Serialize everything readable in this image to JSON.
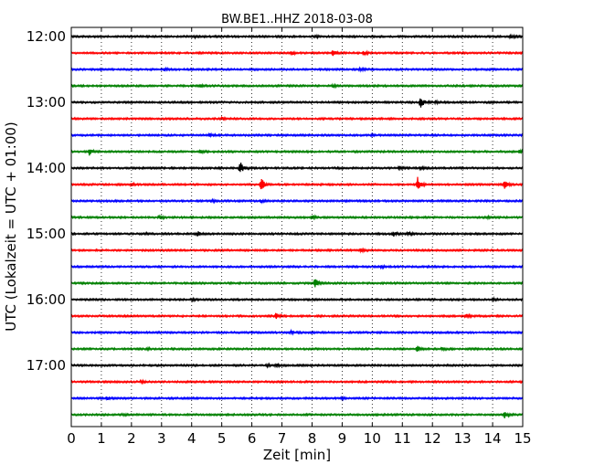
{
  "chart_data": {
    "type": "line",
    "title": "BW.BE1..HHZ 2018-03-08",
    "xlabel": "Zeit  [min]",
    "ylabel": "UTC (Lokalzeit = UTC + 01:00)",
    "xlim": [
      0,
      15
    ],
    "x_ticks": [
      "0",
      "1",
      "2",
      "3",
      "4",
      "5",
      "6",
      "7",
      "8",
      "9",
      "10",
      "11",
      "12",
      "13",
      "14",
      "15"
    ],
    "y_ticks": [
      "12:00",
      "13:00",
      "14:00",
      "15:00",
      "16:00",
      "17:00"
    ],
    "grid": true,
    "minutes_per_trace": 15,
    "colors": [
      "#000000",
      "#ff0000",
      "#0000ff",
      "#008000"
    ],
    "series": [
      {
        "start": "12:00",
        "events": [
          [
            4.1,
            1.2
          ],
          [
            8.1,
            1.4
          ],
          [
            14.6,
            1.6
          ]
        ]
      },
      {
        "start": "12:15",
        "events": [
          [
            7.3,
            2.5
          ],
          [
            8.7,
            3.5
          ],
          [
            9.7,
            2.5
          ]
        ]
      },
      {
        "start": "12:30",
        "events": [
          [
            3.1,
            1.6
          ],
          [
            9.6,
            1.4
          ]
        ]
      },
      {
        "start": "12:45",
        "events": [
          [
            4.3,
            1.2
          ],
          [
            8.7,
            1.0
          ]
        ]
      },
      {
        "start": "13:00",
        "events": [
          [
            11.6,
            7.5
          ],
          [
            12.1,
            1.5
          ]
        ]
      },
      {
        "start": "13:15",
        "events": [
          [
            5.0,
            1.6
          ]
        ]
      },
      {
        "start": "13:30",
        "events": [
          [
            4.6,
            1.6
          ],
          [
            10.0,
            1.0
          ]
        ]
      },
      {
        "start": "13:45",
        "events": [
          [
            0.6,
            3.5
          ],
          [
            4.3,
            1.6
          ],
          [
            14.9,
            1.6
          ]
        ]
      },
      {
        "start": "14:00",
        "events": [
          [
            5.6,
            7.5
          ],
          [
            10.9,
            1.6
          ],
          [
            11.6,
            1.2
          ]
        ]
      },
      {
        "start": "14:15",
        "events": [
          [
            6.3,
            8.0
          ],
          [
            11.5,
            8.0
          ],
          [
            14.4,
            6.5
          ],
          [
            2.0,
            1.5
          ]
        ]
      },
      {
        "start": "14:30",
        "events": [
          [
            6.3,
            1.4
          ],
          [
            4.7,
            1.4
          ]
        ]
      },
      {
        "start": "14:45",
        "events": [
          [
            2.9,
            2.2
          ],
          [
            8.0,
            2.0
          ],
          [
            13.8,
            1.0
          ]
        ]
      },
      {
        "start": "15:00",
        "events": [
          [
            4.2,
            2.5
          ],
          [
            10.7,
            2.5
          ],
          [
            11.2,
            1.5
          ],
          [
            2.5,
            1.0
          ]
        ]
      },
      {
        "start": "15:15",
        "events": [
          [
            9.6,
            2.2
          ]
        ]
      },
      {
        "start": "15:30",
        "events": [
          [
            10.3,
            1.0
          ]
        ]
      },
      {
        "start": "15:45",
        "events": [
          [
            8.1,
            6.0
          ]
        ]
      },
      {
        "start": "16:00",
        "events": [
          [
            4.0,
            1.0
          ],
          [
            14.0,
            1.2
          ]
        ]
      },
      {
        "start": "16:15",
        "events": [
          [
            6.8,
            2.8
          ],
          [
            13.1,
            2.0
          ]
        ]
      },
      {
        "start": "16:30",
        "events": [
          [
            7.3,
            2.0
          ]
        ]
      },
      {
        "start": "16:45",
        "events": [
          [
            11.5,
            3.0
          ],
          [
            12.3,
            1.6
          ],
          [
            2.5,
            1.0
          ]
        ]
      },
      {
        "start": "17:00",
        "events": [
          [
            6.5,
            1.5
          ],
          [
            6.8,
            1.5
          ]
        ]
      },
      {
        "start": "17:15",
        "events": [
          [
            2.3,
            1.0
          ]
        ]
      },
      {
        "start": "17:30",
        "events": [
          [
            1.2,
            1.6
          ],
          [
            9.0,
            1.2
          ]
        ]
      },
      {
        "start": "17:45",
        "events": [
          [
            14.4,
            3.0
          ],
          [
            1.7,
            1.0
          ]
        ]
      }
    ]
  }
}
